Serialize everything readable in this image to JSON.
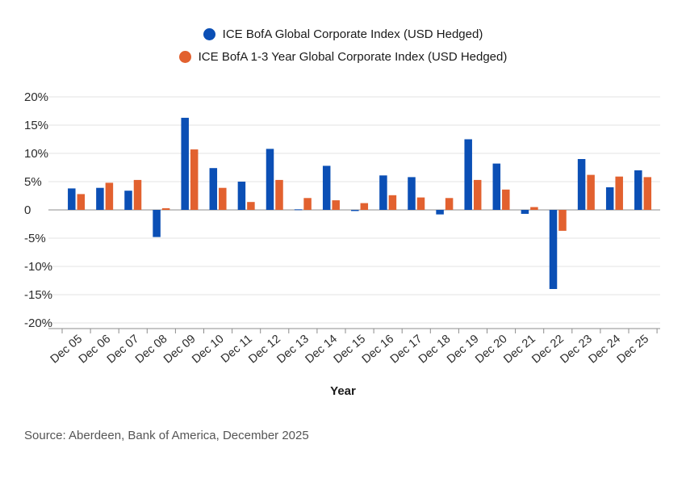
{
  "legend": [
    {
      "name": "ICE BofA Global Corporate Index (USD Hedged)",
      "color": "#0b4fb5"
    },
    {
      "name": "ICE BofA 1-3 Year Global Corporate Index (USD Hedged)",
      "color": "#e2612f"
    }
  ],
  "source": "Source: Aberdeen, Bank of America, December 2025",
  "chart_data": {
    "type": "bar",
    "xlabel": "Year",
    "ylabel": "",
    "ylim": [
      -20,
      20
    ],
    "yticks": [
      20,
      15,
      10,
      5,
      0,
      -5,
      -10,
      -15,
      -20
    ],
    "ytick_labels": [
      "20%",
      "15%",
      "10%",
      "5%",
      "0",
      "-5%",
      "-10%",
      "-15%",
      "-20%"
    ],
    "grid": true,
    "legend_position": "top-center",
    "categories": [
      "Dec 05",
      "Dec 06",
      "Dec 07",
      "Dec 08",
      "Dec 09",
      "Dec 10",
      "Dec 11",
      "Dec 12",
      "Dec 13",
      "Dec 14",
      "Dec 15",
      "Dec 16",
      "Dec 17",
      "Dec 18",
      "Dec 19",
      "Dec 20",
      "Dec 21",
      "Dec 22",
      "Dec 23",
      "Dec 24",
      "Dec 25"
    ],
    "series": [
      {
        "name": "ICE BofA Global Corporate Index (USD Hedged)",
        "color": "#0b4fb5",
        "values": [
          3.8,
          3.9,
          3.4,
          -4.8,
          16.3,
          7.4,
          5.0,
          10.8,
          0.1,
          7.8,
          -0.2,
          6.1,
          5.8,
          -0.8,
          12.5,
          8.2,
          -0.7,
          -14.0,
          9.0,
          4.0,
          7.0
        ]
      },
      {
        "name": "ICE BofA 1-3 Year Global Corporate Index (USD Hedged)",
        "color": "#e2612f",
        "values": [
          2.8,
          4.8,
          5.3,
          0.3,
          10.7,
          3.9,
          1.4,
          5.3,
          2.1,
          1.7,
          1.2,
          2.6,
          2.2,
          2.1,
          5.3,
          3.6,
          0.5,
          -3.7,
          6.2,
          5.9,
          5.8
        ]
      }
    ]
  }
}
